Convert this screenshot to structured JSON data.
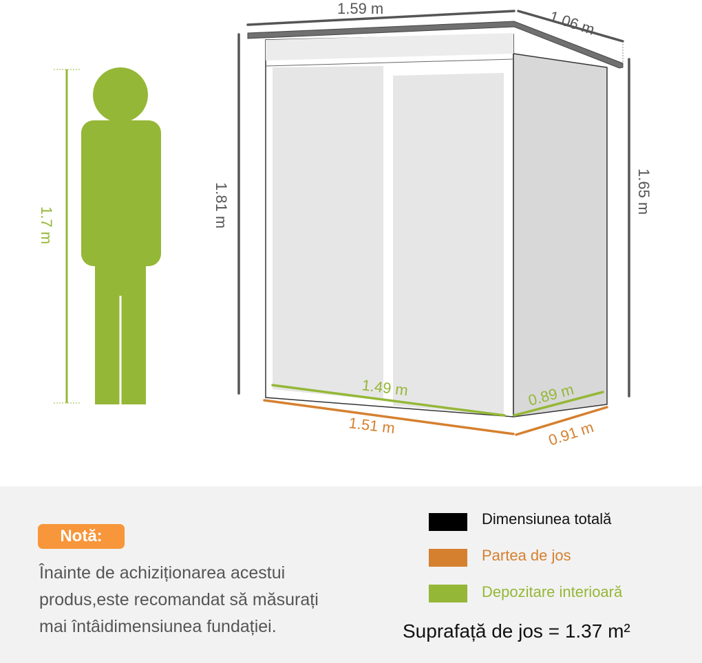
{
  "colors": {
    "person": "#95b737",
    "total": "#000000",
    "bottom": "#d5802f",
    "interior": "#95b737",
    "badge": "#f7963a",
    "dimension_gray": "#555555"
  },
  "person": {
    "height_label": "1.7 m"
  },
  "shed": {
    "width_total": "1.59 m",
    "depth_total": "1.06 m",
    "height_front": "1.81 m",
    "height_back": "1.65 m",
    "interior_width": "1.49 m",
    "interior_depth": "0.89 m",
    "bottom_width": "1.51 m",
    "bottom_depth": "0.91 m"
  },
  "note": {
    "badge": "Notă:",
    "lines": [
      "Înainte de achiziționarea acestui",
      "produs,este recomandat să măsurați",
      "mai întâidimensiunea fundației."
    ]
  },
  "legend": [
    {
      "label": "Dimensiunea totală",
      "color": "#000000"
    },
    {
      "label": "Partea de jos",
      "color": "#d5802f"
    },
    {
      "label": "Depozitare interioară",
      "color": "#95b737"
    }
  ],
  "area": "Suprafață de jos = 1.37 m²"
}
